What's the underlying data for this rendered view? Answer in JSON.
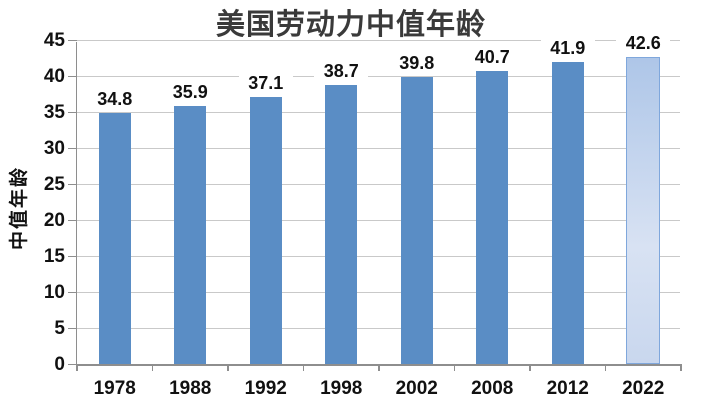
{
  "chart_data": {
    "type": "bar",
    "title": "美国劳动力中值年龄",
    "ylabel": "中值年龄",
    "xlabel": "",
    "categories": [
      "1978",
      "1988",
      "1992",
      "1998",
      "2002",
      "2008",
      "2012",
      "2022"
    ],
    "values": [
      34.8,
      35.9,
      37.1,
      38.7,
      39.8,
      40.7,
      41.9,
      42.6
    ],
    "data_labels": [
      "34.8",
      "35.9",
      "37.1",
      "38.7",
      "39.8",
      "40.7",
      "41.9",
      "42.6"
    ],
    "ylim": [
      0,
      45
    ],
    "yticks": [
      0,
      5,
      10,
      15,
      20,
      25,
      30,
      35,
      40,
      45
    ],
    "grid": true,
    "legend": false,
    "last_bar_forecast": true
  },
  "style": {
    "bar_color": "#5a8dc5",
    "forecast_gradient_top": "#aec6e8",
    "forecast_gradient_mid": "#d8e2f3",
    "forecast_gradient_bottom": "#c9d7ee",
    "forecast_border_color": "#7fa7dc",
    "gridline_color": "#c9c9c9",
    "axis_color": "#8e8e8e",
    "title_color": "#3a3a3a",
    "text_color": "#111111",
    "background": "#ffffff"
  }
}
